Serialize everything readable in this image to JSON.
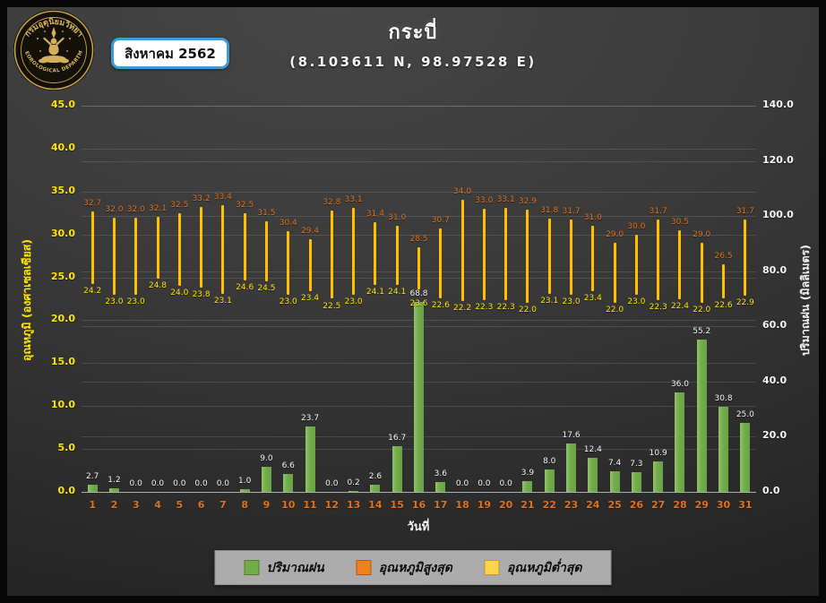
{
  "header": {
    "logo": {
      "top_text": "กรมอุตุนิยมวิทยา",
      "bottom_text": "METEOROLOGICAL DEPARTMENT"
    },
    "badge_label": "สิงหาคม 2562",
    "title": "กระบี่",
    "subtitle": "(8.103611 N, 98.97528 E)"
  },
  "chart_data": {
    "type": "bar",
    "title": "กระบี่",
    "subtitle": "(8.103611 N, 98.97528 E)",
    "month_label": "สิงหาคม 2562",
    "x": [
      1,
      2,
      3,
      4,
      5,
      6,
      7,
      8,
      9,
      10,
      11,
      12,
      13,
      14,
      15,
      16,
      17,
      18,
      19,
      20,
      21,
      22,
      23,
      24,
      25,
      26,
      27,
      28,
      29,
      30,
      31
    ],
    "xlabel": "วันที่",
    "series": [
      {
        "name": "ปริมาณฝน",
        "type": "bar",
        "axis": "right",
        "color": "#70AD47",
        "values": [
          2.7,
          1.2,
          0.0,
          0.0,
          0.0,
          0.0,
          0.0,
          1.0,
          9.0,
          6.6,
          23.7,
          0.0,
          0.2,
          2.6,
          16.7,
          68.8,
          3.6,
          0.0,
          0.0,
          0.0,
          3.9,
          8.0,
          17.6,
          12.4,
          7.4,
          7.3,
          10.9,
          36.0,
          55.2,
          30.8,
          25.0
        ]
      },
      {
        "name": "อุณหภูมิสูงสุด",
        "type": "hilo_high",
        "axis": "left",
        "color": "#E0711F",
        "values": [
          32.7,
          32.0,
          32.0,
          32.1,
          32.5,
          33.2,
          33.4,
          32.5,
          31.5,
          30.4,
          29.4,
          32.8,
          33.1,
          31.4,
          31.0,
          28.5,
          30.7,
          34.0,
          33.0,
          33.1,
          32.9,
          31.8,
          31.7,
          31.0,
          29.0,
          30.0,
          31.7,
          30.5,
          29.0,
          26.5,
          31.7
        ]
      },
      {
        "name": "อุณหภูมิต่ำสุด",
        "type": "hilo_low",
        "axis": "left",
        "color": "#FFE400",
        "values": [
          24.2,
          23.0,
          23.0,
          24.8,
          24.0,
          23.8,
          23.1,
          24.6,
          24.5,
          23.0,
          23.4,
          22.5,
          23.0,
          24.1,
          24.1,
          23.6,
          22.6,
          22.2,
          22.3,
          22.3,
          22.0,
          23.1,
          23.0,
          23.4,
          22.0,
          23.0,
          22.3,
          22.4,
          22.0,
          22.6,
          22.9
        ]
      }
    ],
    "left_axis": {
      "title": "อุณหภูมิ (องศาเซลเซียส)",
      "min": 0,
      "max": 45,
      "step": 5
    },
    "right_axis": {
      "title": "ปริมาณฝน (มิลลิเมตร)",
      "min": 0,
      "max": 140,
      "step": 20
    },
    "hilo_line_color": "#FFC000",
    "rain_label_color": "#F5F5F5",
    "grid": true,
    "legend_position": "bottom"
  },
  "legend": {
    "items": [
      {
        "label": "ปริมาณฝน",
        "color": "#70AD47"
      },
      {
        "label": "อุณหภูมิสูงสุด",
        "color": "#F07F1E"
      },
      {
        "label": "อุณหภูมิต่ำสุด",
        "color": "#FFD34D"
      }
    ]
  }
}
